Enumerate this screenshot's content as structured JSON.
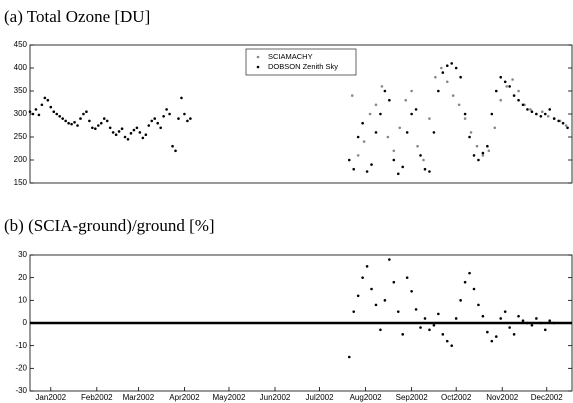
{
  "chart_data": [
    {
      "type": "scatter",
      "title": "(a) Total Ozone [DU]",
      "xlim": [
        1,
        366
      ],
      "ylim": [
        150,
        450
      ],
      "yticks": [
        150,
        200,
        250,
        300,
        350,
        400,
        450
      ],
      "legend": "top-center",
      "series": [
        {
          "name": "SCIAMACHY",
          "color": "#888888",
          "x": [
            218,
            222,
            226,
            230,
            234,
            238,
            242,
            246,
            250,
            254,
            258,
            262,
            266,
            270,
            274,
            278,
            282,
            286,
            290,
            294,
            298,
            302,
            306,
            310,
            314,
            318,
            322,
            326,
            330,
            334,
            338,
            342,
            346,
            350,
            354,
            358,
            362
          ],
          "values": [
            340,
            210,
            240,
            300,
            320,
            360,
            250,
            220,
            270,
            330,
            350,
            230,
            200,
            290,
            380,
            400,
            370,
            340,
            320,
            290,
            260,
            230,
            210,
            220,
            270,
            330,
            360,
            375,
            350,
            320,
            310,
            300,
            305,
            295,
            290,
            285,
            275
          ]
        },
        {
          "name": "DOBSON Zenith Sky",
          "color": "#000000",
          "x": [
            1,
            3,
            5,
            7,
            9,
            11,
            13,
            15,
            17,
            19,
            21,
            23,
            25,
            27,
            29,
            31,
            33,
            35,
            37,
            39,
            41,
            43,
            45,
            47,
            49,
            51,
            53,
            55,
            57,
            59,
            61,
            63,
            65,
            67,
            69,
            71,
            73,
            75,
            77,
            79,
            81,
            83,
            85,
            87,
            89,
            91,
            93,
            95,
            97,
            99,
            101,
            103,
            105,
            107,
            109,
            216,
            219,
            222,
            225,
            228,
            231,
            234,
            237,
            240,
            243,
            246,
            249,
            252,
            255,
            258,
            261,
            264,
            267,
            270,
            273,
            276,
            279,
            282,
            285,
            288,
            291,
            294,
            297,
            300,
            303,
            306,
            309,
            312,
            315,
            318,
            321,
            324,
            327,
            330,
            333,
            336,
            339,
            342,
            345,
            348,
            351,
            354,
            357,
            360,
            363
          ],
          "values": [
            305,
            300,
            310,
            298,
            320,
            335,
            330,
            315,
            305,
            300,
            295,
            290,
            285,
            280,
            278,
            282,
            275,
            290,
            300,
            305,
            285,
            270,
            268,
            275,
            280,
            290,
            285,
            270,
            260,
            255,
            262,
            268,
            250,
            245,
            258,
            265,
            270,
            260,
            248,
            255,
            275,
            285,
            290,
            280,
            270,
            295,
            310,
            300,
            230,
            220,
            290,
            335,
            300,
            285,
            290,
            200,
            180,
            250,
            280,
            175,
            190,
            260,
            300,
            350,
            330,
            200,
            170,
            185,
            260,
            300,
            310,
            210,
            180,
            175,
            260,
            350,
            390,
            405,
            410,
            400,
            380,
            300,
            250,
            210,
            200,
            215,
            230,
            300,
            350,
            380,
            370,
            360,
            340,
            330,
            320,
            310,
            305,
            300,
            295,
            300,
            310,
            290,
            285,
            280,
            270
          ]
        }
      ]
    },
    {
      "type": "scatter",
      "title": "(b) (SCIA-ground)/ground [%]",
      "xlim": [
        1,
        366
      ],
      "xticks": [
        {
          "value": 15,
          "label": "Jan2002"
        },
        {
          "value": 46,
          "label": "Feb2002"
        },
        {
          "value": 74,
          "label": "Mar2002"
        },
        {
          "value": 105,
          "label": "Apr2002"
        },
        {
          "value": 135,
          "label": "May2002"
        },
        {
          "value": 166,
          "label": "Jun2002"
        },
        {
          "value": 196,
          "label": "Jul2002"
        },
        {
          "value": 227,
          "label": "Aug2002"
        },
        {
          "value": 258,
          "label": "Sep2002"
        },
        {
          "value": 288,
          "label": "Oct2002"
        },
        {
          "value": 319,
          "label": "Nov2002"
        },
        {
          "value": 349,
          "label": "Dec2002"
        }
      ],
      "ylim": [
        -30,
        30
      ],
      "yticks": [
        -30,
        -20,
        -10,
        0,
        10,
        20,
        30
      ],
      "series": [
        {
          "color": "#000000",
          "x": [
            216,
            219,
            222,
            225,
            228,
            231,
            234,
            237,
            240,
            243,
            246,
            249,
            252,
            255,
            258,
            261,
            264,
            267,
            270,
            273,
            276,
            279,
            282,
            285,
            288,
            291,
            294,
            297,
            300,
            303,
            306,
            309,
            312,
            315,
            318,
            321,
            324,
            327,
            330,
            333,
            336,
            339,
            342,
            345,
            348,
            351,
            354
          ],
          "values": [
            -15,
            5,
            12,
            20,
            25,
            15,
            8,
            -3,
            10,
            28,
            18,
            5,
            -5,
            20,
            14,
            6,
            -2,
            2,
            -3,
            -1,
            4,
            -5,
            -8,
            -10,
            2,
            10,
            18,
            22,
            15,
            8,
            3,
            -4,
            -8,
            -6,
            2,
            5,
            -2,
            -5,
            3,
            1,
            0,
            -1,
            2,
            0,
            -3,
            1,
            0
          ]
        }
      ]
    }
  ]
}
